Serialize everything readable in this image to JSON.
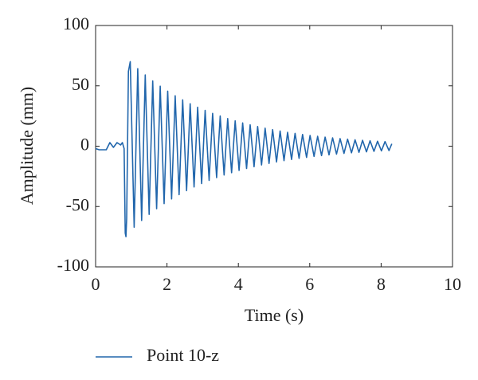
{
  "chart_data": {
    "type": "line",
    "x_label": "Time (s)",
    "y_label": "Amplitude (mm)",
    "xlim": [
      0,
      10
    ],
    "xticks": [
      0,
      2,
      4,
      6,
      8,
      10
    ],
    "ylim": [
      -100,
      100
    ],
    "yticks": [
      -100,
      -50,
      0,
      50,
      100
    ],
    "series": [
      {
        "name": "Point 10-z",
        "color": "#2166ac",
        "x": [
          0,
          0.1,
          0.3,
          0.4,
          0.5,
          0.6,
          0.7,
          0.75,
          0.8,
          0.83,
          0.85,
          0.87,
          0.92,
          0.97,
          1.08,
          1.18,
          1.29,
          1.39,
          1.5,
          1.6,
          1.71,
          1.81,
          1.92,
          2.02,
          2.13,
          2.23,
          2.34,
          2.44,
          2.55,
          2.65,
          2.76,
          2.86,
          2.97,
          3.07,
          3.18,
          3.28,
          3.39,
          3.49,
          3.6,
          3.7,
          3.81,
          3.91,
          4.02,
          4.12,
          4.23,
          4.33,
          4.44,
          4.54,
          4.65,
          4.75,
          4.86,
          4.96,
          5.07,
          5.17,
          5.28,
          5.38,
          5.49,
          5.59,
          5.7,
          5.8,
          5.91,
          6.01,
          6.12,
          6.22,
          6.33,
          6.43,
          6.54,
          6.64,
          6.75,
          6.85,
          6.96,
          7.06,
          7.17,
          7.27,
          7.38,
          7.48,
          7.59,
          7.69,
          7.8,
          7.9,
          8.01,
          8.11,
          8.22,
          8.3
        ],
        "values": [
          -2,
          -3,
          -3,
          3,
          -1,
          3,
          1,
          3,
          -2,
          -72,
          -75,
          -60,
          62,
          70,
          -67.1,
          64.2,
          -61.5,
          59,
          -56.5,
          54.1,
          -51.8,
          49.7,
          -47.6,
          45.6,
          -43.7,
          41.8,
          -40.1,
          38.4,
          -36.8,
          35.2,
          -33.8,
          32.3,
          -31,
          29.7,
          -28.4,
          27.2,
          -26.1,
          25,
          -23.9,
          22.9,
          -22,
          21,
          -20.1,
          19.3,
          -18.5,
          17.7,
          -17,
          16.3,
          -15.6,
          14.9,
          -14.3,
          13.7,
          -13.1,
          12.6,
          -12,
          11.5,
          -11,
          10.6,
          -10.1,
          9.7,
          -9.3,
          8.9,
          -8.5,
          8.2,
          -7.8,
          7.5,
          -7.2,
          6.9,
          -6.6,
          6.3,
          -6,
          5.8,
          -5.5,
          5.3,
          -5.1,
          4.9,
          -4.7,
          4.5,
          -4.3,
          4.1,
          -3.9,
          3.8,
          -3.6,
          2
        ]
      }
    ],
    "legend": "bottom-left"
  }
}
